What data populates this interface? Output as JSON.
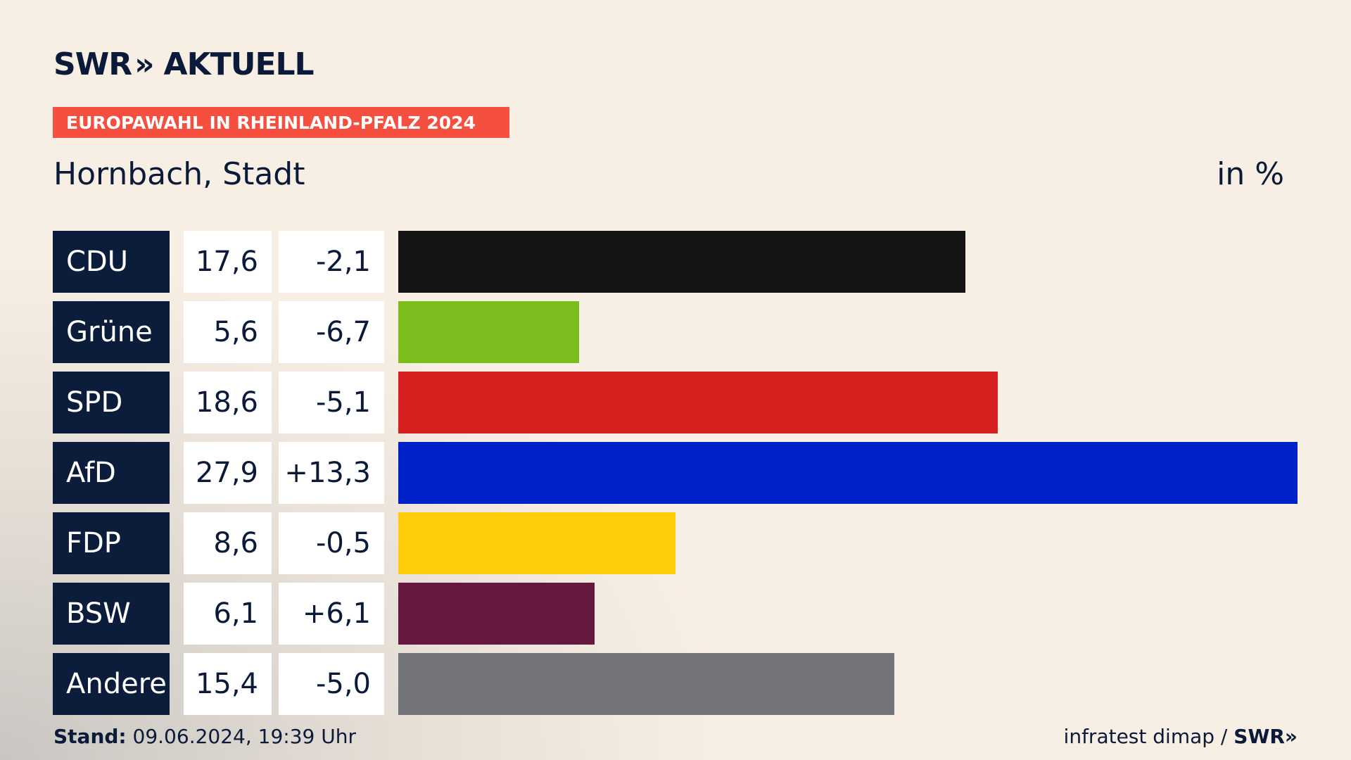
{
  "brand": "SWR",
  "brand_suffix": "AKTUELL",
  "chart_data": {
    "type": "bar",
    "subtitle": "EUROPAWAHL IN RHEINLAND-PFALZ 2024",
    "title": "Hornbach, Stadt",
    "unit": "in %",
    "categories": [
      "CDU",
      "Grüne",
      "SPD",
      "AfD",
      "FDP",
      "BSW",
      "Andere"
    ],
    "values": [
      17.6,
      5.6,
      18.6,
      27.9,
      8.6,
      6.1,
      15.4
    ],
    "value_labels": [
      "17,6",
      "5,6",
      "18,6",
      "27,9",
      "8,6",
      "6,1",
      "15,4"
    ],
    "changes": [
      -2.1,
      -6.7,
      -5.1,
      13.3,
      -0.5,
      6.1,
      -5.0
    ],
    "change_labels": [
      "-2,1",
      "-6,7",
      "-5,1",
      "+13,3",
      "-0,5",
      "+6,1",
      "-5,0"
    ],
    "colors": [
      "#141414",
      "#7abd1c",
      "#d61f1f",
      "#0020c8",
      "#ffcc0a",
      "#66183f",
      "#737477"
    ]
  },
  "footer": {
    "stand_label": "Stand:",
    "stand": "09.06.2024, 19:39 Uhr",
    "source": "infratest dimap /",
    "logo": "SWR"
  }
}
